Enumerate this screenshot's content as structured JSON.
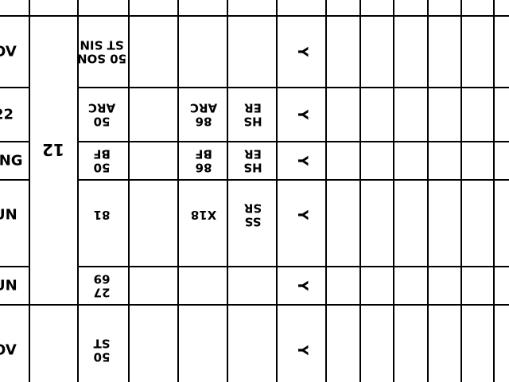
{
  "ink_color": "#000000",
  "paper_color": "#ffffff",
  "edge_labels": [
    "OV",
    "22",
    "ING",
    "UN",
    "UN",
    "OV"
  ],
  "group_label": "12",
  "rows": [
    {
      "code": [
        "50 SON",
        "ST SIN"
      ],
      "col2": [],
      "col3": [],
      "flag": "Y"
    },
    {
      "code": [
        "50",
        "ARC"
      ],
      "col2": [
        "86",
        "ARC"
      ],
      "col3": [
        "HS",
        "ER"
      ],
      "flag": "Y"
    },
    {
      "code": [
        "50",
        "BF"
      ],
      "col2": [
        "86",
        "BF"
      ],
      "col3": [
        "HS",
        "ER"
      ],
      "flag": "Y"
    },
    {
      "code": [
        "81"
      ],
      "col2": [
        "X18"
      ],
      "col3": [
        "SS",
        "SR"
      ],
      "flag": "Y"
    },
    {
      "code": [
        "27",
        "69"
      ],
      "col2": [],
      "col3": [],
      "flag": "Y"
    },
    {
      "code": [
        "50",
        "ST"
      ],
      "col2": [],
      "col3": [],
      "flag": "Y"
    }
  ]
}
